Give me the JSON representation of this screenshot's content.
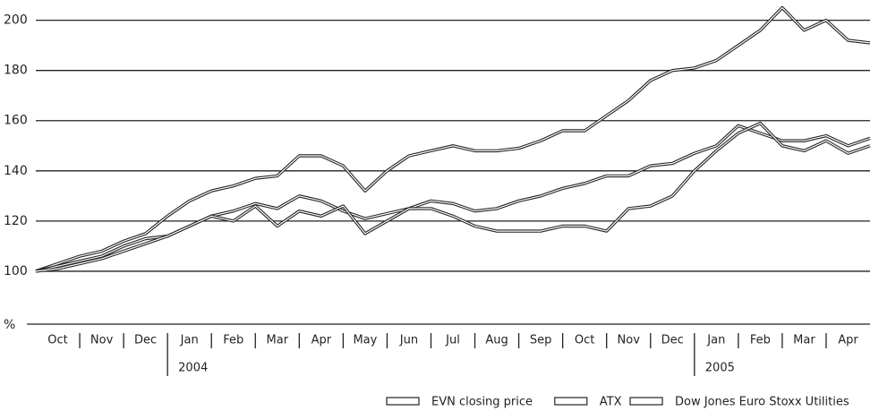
{
  "chart_data": {
    "type": "line",
    "y_label": "%",
    "categories": [
      "Oct",
      "Nov",
      "Dec",
      "Jan",
      "Feb",
      "Mar",
      "Apr",
      "May",
      "Jun",
      "Jul",
      "Aug",
      "Sep",
      "Oct",
      "Nov",
      "Dec",
      "Jan",
      "Feb",
      "Mar",
      "Apr"
    ],
    "year_labels": [
      "2004",
      "2005"
    ],
    "x": [
      0,
      0.5,
      1,
      1.5,
      2,
      2.5,
      3,
      3.5,
      4,
      4.5,
      5,
      5.5,
      6,
      6.5,
      7,
      7.5,
      8,
      8.5,
      9,
      9.5,
      10,
      10.5,
      11,
      11.5,
      12,
      12.5,
      13,
      13.5,
      14,
      14.5,
      15,
      15.5,
      16,
      16.5,
      17,
      17.5,
      18,
      18.5,
      19
    ],
    "xlim": [
      0,
      19
    ],
    "ylim": [
      80,
      207
    ],
    "yticks": [
      100,
      120,
      140,
      160,
      180,
      200
    ],
    "grid": true,
    "legend": "bottom-right",
    "series": [
      {
        "name": "EVN closing price",
        "color": "#222222",
        "values": [
          100,
          103,
          106,
          108,
          112,
          115,
          122,
          128,
          132,
          134,
          137,
          138,
          146,
          146,
          142,
          132,
          140,
          146,
          148,
          150,
          148,
          148,
          149,
          152,
          156,
          156,
          162,
          168,
          176,
          180,
          181,
          184,
          190,
          196,
          205,
          196,
          200,
          192,
          191
        ]
      },
      {
        "name": "ATX",
        "color": "#222222",
        "values": [
          100,
          102,
          104,
          106,
          110,
          113,
          114,
          118,
          122,
          124,
          127,
          125,
          130,
          128,
          124,
          121,
          123,
          125,
          128,
          127,
          124,
          125,
          128,
          130,
          133,
          135,
          138,
          138,
          142,
          143,
          147,
          150,
          158,
          155,
          152,
          152,
          154,
          150,
          153
        ]
      },
      {
        "name": "Dow Jones Euro Stoxx Utilities",
        "color": "#222222",
        "values": [
          100,
          101,
          103,
          105,
          108,
          111,
          114,
          118,
          122,
          120,
          126,
          118,
          124,
          122,
          126,
          115,
          120,
          125,
          125,
          122,
          118,
          116,
          116,
          116,
          118,
          118,
          116,
          125,
          126,
          130,
          140,
          148,
          155,
          159,
          150,
          148,
          152,
          147,
          150
        ]
      }
    ]
  }
}
